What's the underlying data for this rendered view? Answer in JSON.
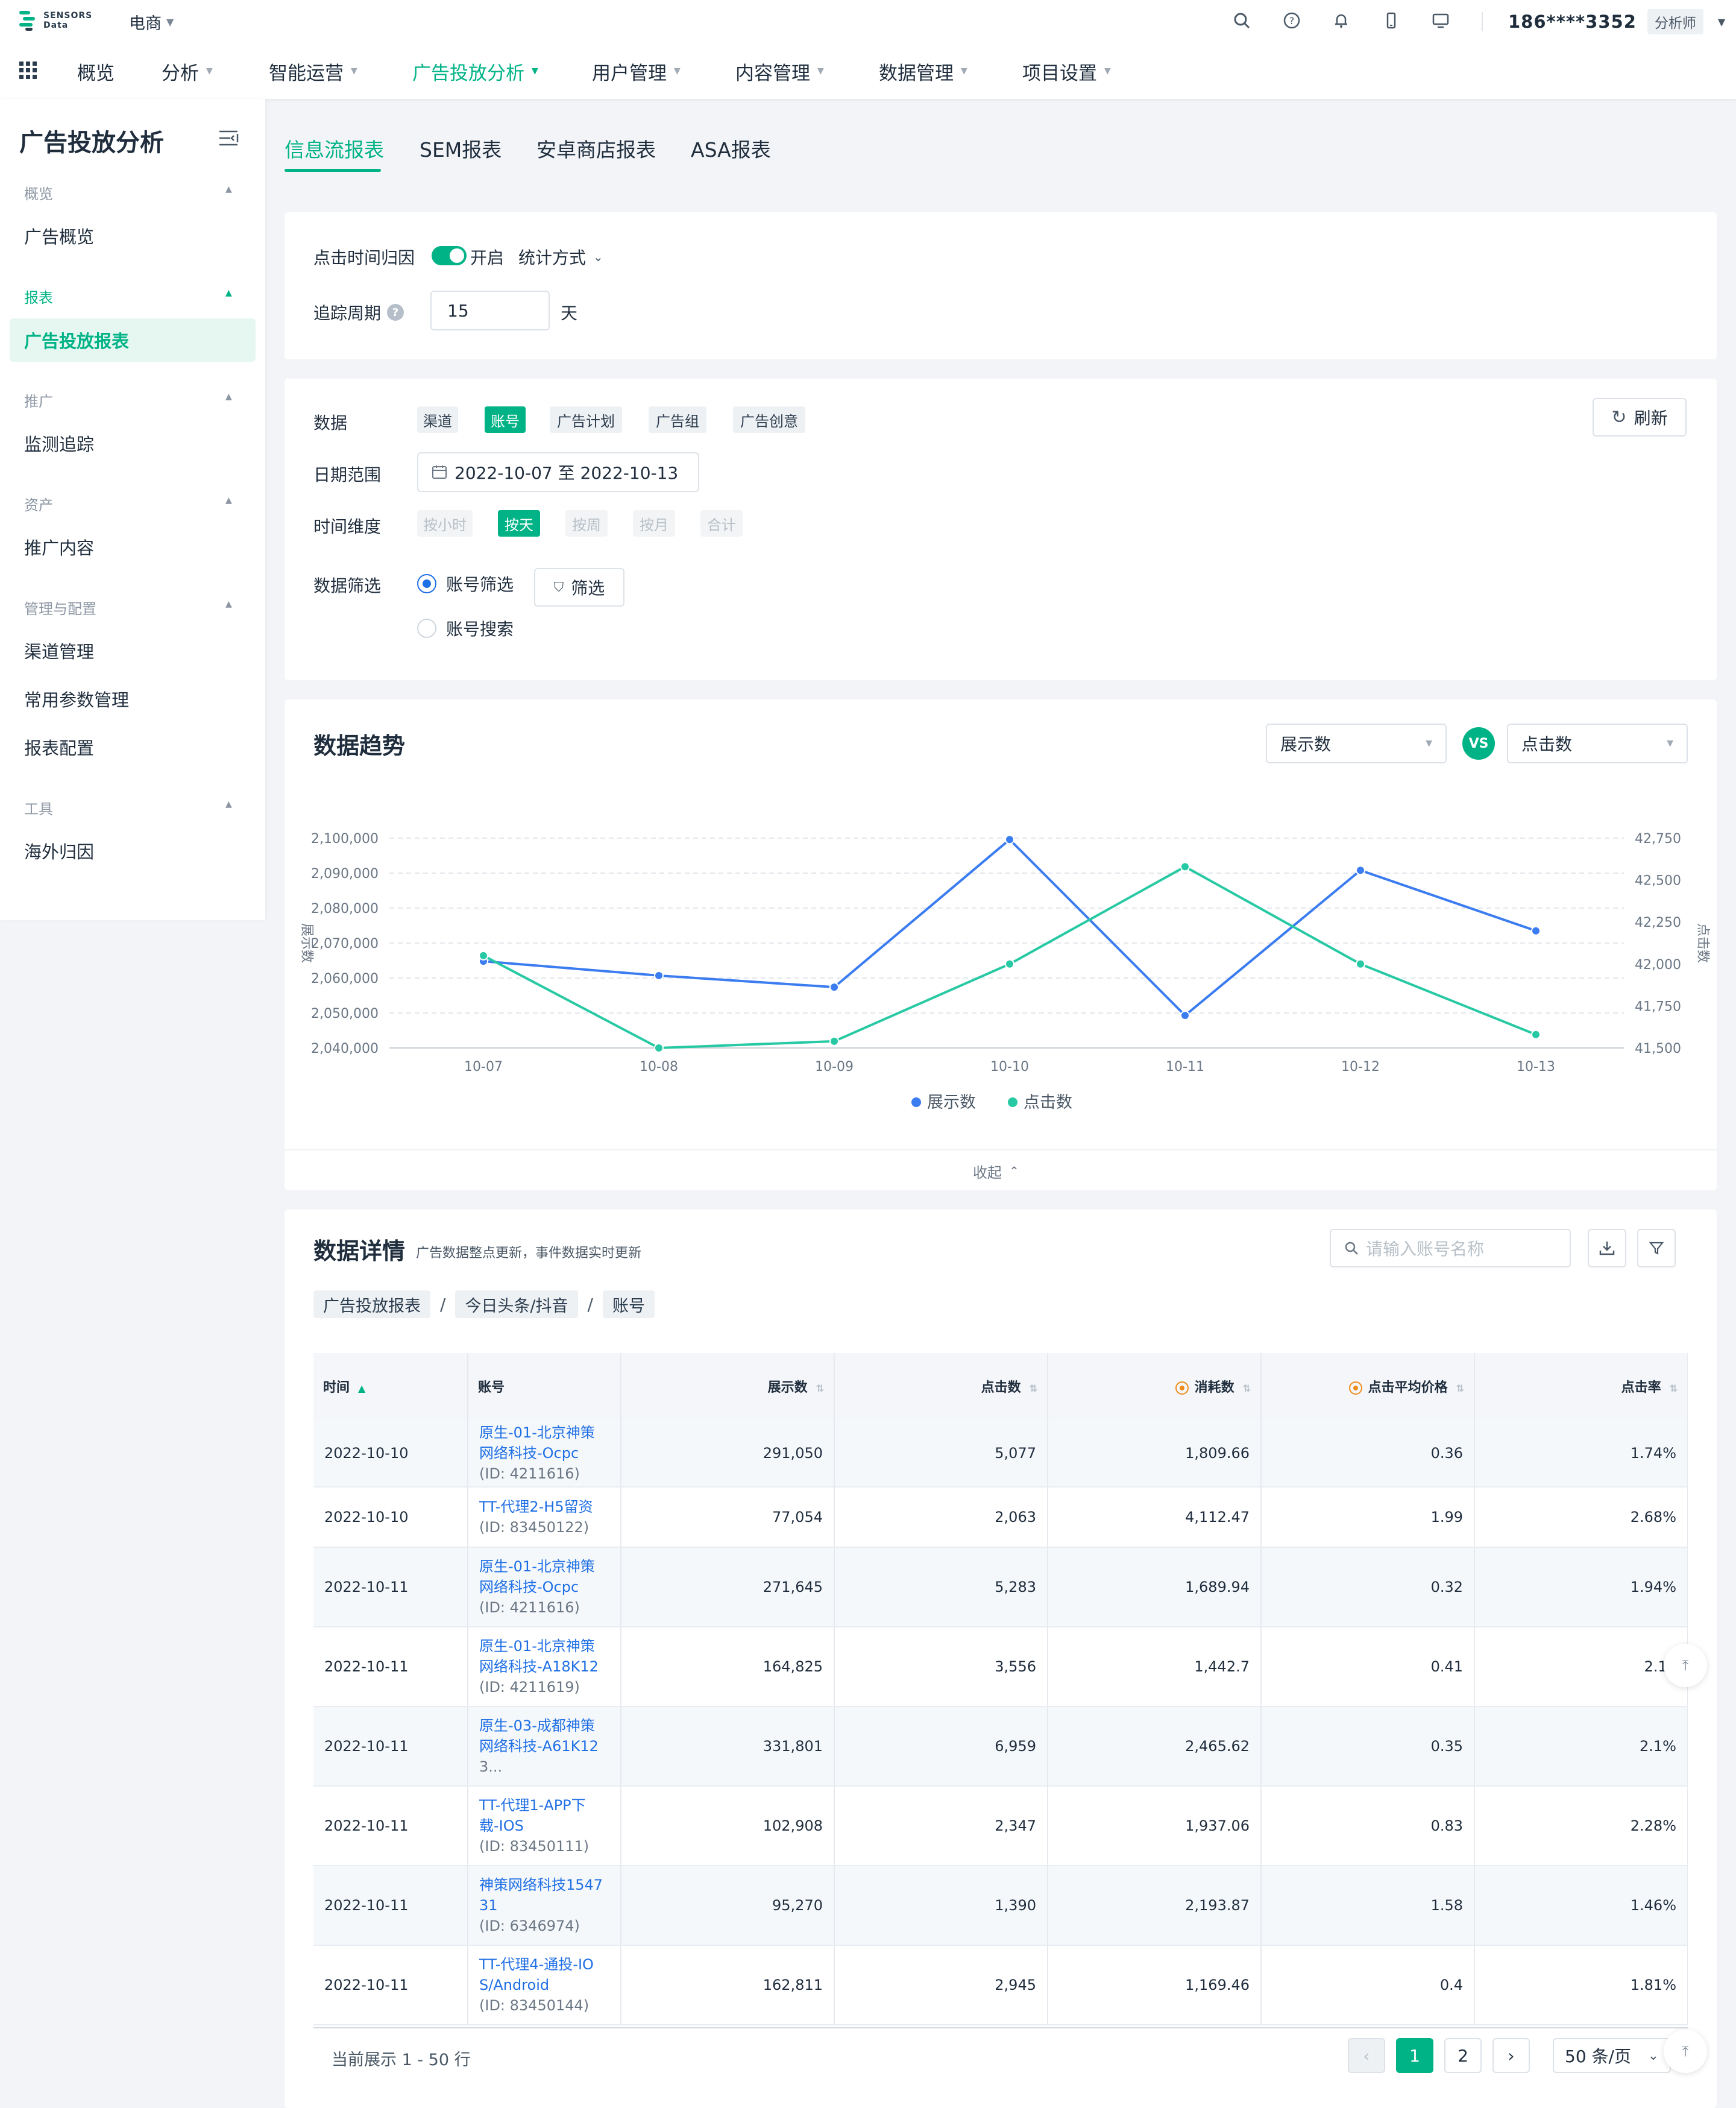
{
  "brand": {
    "logo_line1": "SENSORS",
    "logo_line2": "Data",
    "project": "电商"
  },
  "topbar": {
    "user": "186****3352",
    "role": "分析师"
  },
  "nav": {
    "items": [
      {
        "label": "概览"
      },
      {
        "label": "分析"
      },
      {
        "label": "智能运营"
      },
      {
        "label": "广告投放分析"
      },
      {
        "label": "用户管理"
      },
      {
        "label": "内容管理"
      },
      {
        "label": "数据管理"
      },
      {
        "label": "项目设置"
      }
    ]
  },
  "sidebar": {
    "title": "广告投放分析",
    "groups": [
      {
        "label": "概览",
        "items": [
          "广告概览"
        ]
      },
      {
        "label": "报表",
        "items": [
          "广告投放报表"
        ]
      },
      {
        "label": "推广",
        "items": [
          "监测追踪"
        ]
      },
      {
        "label": "资产",
        "items": [
          "推广内容"
        ]
      },
      {
        "label": "管理与配置",
        "items": [
          "渠道管理",
          "常用参数管理",
          "报表配置"
        ]
      },
      {
        "label": "工具",
        "items": [
          "海外归因"
        ]
      }
    ]
  },
  "tabs": [
    "信息流报表",
    "SEM报表",
    "安卓商店报表",
    "ASA报表"
  ],
  "settings": {
    "click_attr_label": "点击时间归因",
    "toggle_text": "开启",
    "stat_mode": "统计方式",
    "track_label": "追踪周期",
    "track_value": "15",
    "track_unit": "天"
  },
  "filters": {
    "data_label": "数据",
    "data_chips": [
      "渠道",
      "账号",
      "广告计划",
      "广告组",
      "广告创意"
    ],
    "refresh": "刷新",
    "date_label": "日期范围",
    "date_value": "2022-10-07 至 2022-10-13",
    "dim_label": "时间维度",
    "dim_chips": [
      "按小时",
      "按天",
      "按周",
      "按月",
      "合计"
    ],
    "filter_label": "数据筛选",
    "radio1": "账号筛选",
    "radio2": "账号搜索",
    "filter_btn": "筛选"
  },
  "trend": {
    "title": "数据趋势",
    "metric_left": "展示数",
    "vs": "VS",
    "metric_right": "点击数",
    "collapse": "收起"
  },
  "chart_data": {
    "type": "line",
    "x": [
      "10-07",
      "10-08",
      "10-09",
      "10-10",
      "10-11",
      "10-12",
      "10-13"
    ],
    "series": [
      {
        "name": "展示数",
        "axis": "left",
        "color": "#3b7cf0",
        "values": [
          2064800,
          2060700,
          2057400,
          2099600,
          2049300,
          2090800,
          2073500
        ]
      },
      {
        "name": "点击数",
        "axis": "right",
        "color": "#27c9a4",
        "values": [
          42050,
          41500,
          41540,
          42000,
          42580,
          42000,
          41580
        ]
      }
    ],
    "ylabel_left": "展示数",
    "ylabel_right": "点击数",
    "ylim_left": [
      2040000,
      2100000
    ],
    "ylim_right": [
      41500,
      42750
    ],
    "yticks_left": [
      "2,100,000",
      "2,090,000",
      "2,080,000",
      "2,070,000",
      "2,060,000",
      "2,050,000",
      "2,040,000"
    ],
    "yticks_right": [
      "42,750",
      "42,500",
      "42,250",
      "42,000",
      "41,750",
      "41,500"
    ],
    "grid": true,
    "legend": "bottom"
  },
  "details": {
    "title": "数据详情",
    "subtitle": "广告数据整点更新，事件数据实时更新",
    "search_placeholder": "请输入账号名称",
    "breadcrumb": [
      "广告投放报表",
      "今日头条/抖音",
      "账号"
    ],
    "columns": [
      "时间",
      "账号",
      "展示数",
      "点击数",
      "消耗数",
      "点击平均价格",
      "点击率"
    ],
    "rows": [
      {
        "date": "2022-10-10",
        "name1": "原生-01-北京神策",
        "name2": "网络科技-Ocpc",
        "id": "(ID: 4211616)",
        "impr": "291,050",
        "clicks": "5,077",
        "cost": "1,809.66",
        "cpc": "0.36",
        "ctr": "1.74%"
      },
      {
        "date": "2022-10-10",
        "name1": "TT-代理2-H5留资",
        "name2": "",
        "id": "(ID: 83450122)",
        "impr": "77,054",
        "clicks": "2,063",
        "cost": "4,112.47",
        "cpc": "1.99",
        "ctr": "2.68%"
      },
      {
        "date": "2022-10-11",
        "name1": "原生-01-北京神策",
        "name2": "网络科技-Ocpc",
        "id": "(ID: 4211616)",
        "impr": "271,645",
        "clicks": "5,283",
        "cost": "1,689.94",
        "cpc": "0.32",
        "ctr": "1.94%"
      },
      {
        "date": "2022-10-11",
        "name1": "原生-01-北京神策",
        "name2": "网络科技-A18K12",
        "id": "(ID: 4211619)",
        "impr": "164,825",
        "clicks": "3,556",
        "cost": "1,442.7",
        "cpc": "0.41",
        "ctr": "2.16"
      },
      {
        "date": "2022-10-11",
        "name1": "原生-03-成都神策",
        "name2": "网络科技-A61K12",
        "id": "3...",
        "impr": "331,801",
        "clicks": "6,959",
        "cost": "2,465.62",
        "cpc": "0.35",
        "ctr": "2.1%"
      },
      {
        "date": "2022-10-11",
        "name1": "TT-代理1-APP下",
        "name2": "载-IOS",
        "id": "(ID: 83450111)",
        "impr": "102,908",
        "clicks": "2,347",
        "cost": "1,937.06",
        "cpc": "0.83",
        "ctr": "2.28%"
      },
      {
        "date": "2022-10-11",
        "name1": "神策网络科技1547",
        "name2": "31",
        "id": "(ID: 6346974)",
        "impr": "95,270",
        "clicks": "1,390",
        "cost": "2,193.87",
        "cpc": "1.58",
        "ctr": "1.46%"
      },
      {
        "date": "2022-10-11",
        "name1": "TT-代理4-通投-IO",
        "name2": "S/Android",
        "id": "(ID: 83450144)",
        "impr": "162,811",
        "clicks": "2,945",
        "cost": "1,169.46",
        "cpc": "0.4",
        "ctr": "1.81%"
      }
    ],
    "footer_text": "当前展示 1 - 50 行",
    "pages": [
      "1",
      "2"
    ],
    "page_size": "50 条/页"
  }
}
